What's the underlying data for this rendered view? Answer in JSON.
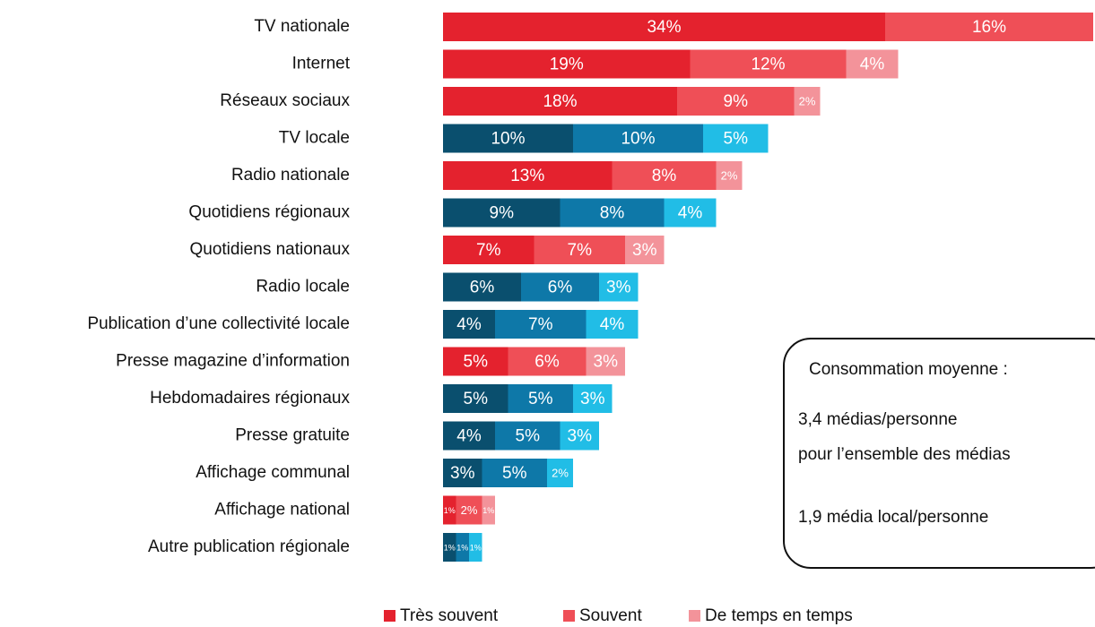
{
  "chart_data": {
    "type": "stacked_bar_horizontal",
    "categories": [
      "TV nationale",
      "Internet",
      "Réseaux sociaux",
      "TV locale",
      "Radio nationale",
      "Quotidiens régionaux",
      "Quotidiens nationaux",
      "Radio locale",
      "Publication d’une collectivité locale",
      "Presse magazine d’information",
      "Hebdomadaires régionaux",
      "Presse gratuite",
      "Affichage communal",
      "Affichage national",
      "Autre publication régionale"
    ],
    "series": [
      {
        "name": "Très souvent",
        "color": "#e4222e",
        "colors": [
          "#e4222e",
          "#e4222e",
          "#e4222e",
          "#0a4f6e",
          "#e4222e",
          "#0a4f6e",
          "#e4222e",
          "#0a4f6e",
          "#0a4f6e",
          "#e4222e",
          "#0a4f6e",
          "#0a4f6e",
          "#0a4f6e",
          "#e4222e",
          "#0a4f6e"
        ],
        "values": [
          34,
          19,
          18,
          10,
          13,
          9,
          7,
          6,
          4,
          5,
          5,
          4,
          3,
          1,
          1
        ],
        "value_labels": [
          "34%",
          "19%",
          "18%",
          "10%",
          "13%",
          "9%",
          "7%",
          "6%",
          "4%",
          "5%",
          "5%",
          "4%",
          "3%",
          "1%",
          "1%"
        ]
      },
      {
        "name": "Souvent",
        "color": "#ef4f57",
        "colors": [
          "#ef4f57",
          "#ef4f57",
          "#ef4f57",
          "#0e78a8",
          "#ef4f57",
          "#0e78a8",
          "#ef4f57",
          "#0e78a8",
          "#0e78a8",
          "#ef4f57",
          "#0e78a8",
          "#0e78a8",
          "#0e78a8",
          "#ef4f57",
          "#0e78a8"
        ],
        "values": [
          16,
          12,
          9,
          10,
          8,
          8,
          7,
          6,
          7,
          6,
          5,
          5,
          5,
          2,
          1
        ],
        "value_labels": [
          "16%",
          "12%",
          "9%",
          "10%",
          "8%",
          "8%",
          "7%",
          "6%",
          "7%",
          "6%",
          "5%",
          "5%",
          "5%",
          "2%",
          "1%"
        ]
      },
      {
        "name": "De temps en temps",
        "color": "#f3939a",
        "colors": [
          "#f3939a",
          "#f3939a",
          "#f3939a",
          "#21bde6",
          "#f3939a",
          "#21bde6",
          "#f3939a",
          "#21bde6",
          "#21bde6",
          "#f3939a",
          "#21bde6",
          "#21bde6",
          "#21bde6",
          "#f3939a",
          "#21bde6"
        ],
        "values": [
          null,
          4,
          2,
          5,
          2,
          4,
          3,
          3,
          4,
          3,
          3,
          3,
          2,
          1,
          1
        ],
        "value_labels": [
          null,
          "4%",
          "2%",
          "5%",
          "2%",
          "4%",
          "3%",
          "3%",
          "4%",
          "3%",
          "3%",
          "3%",
          "2%",
          "1%",
          "1%"
        ]
      }
    ],
    "annotation": {
      "title": "Consommation moyenne :",
      "lines": [
        "3,4 médias/personne",
        "pour l’ensemble des médias",
        "1,9 média local/personne"
      ]
    }
  }
}
